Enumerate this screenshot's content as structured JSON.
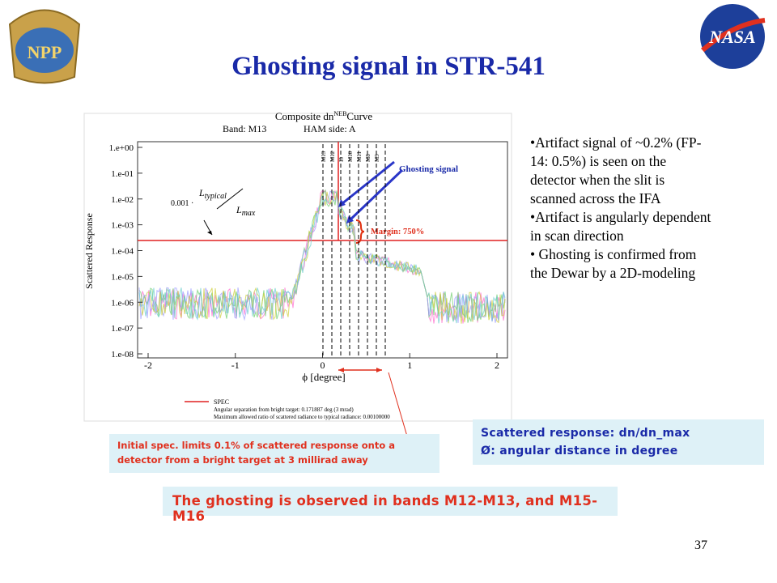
{
  "header": {
    "title": "Ghosting signal in STR-541",
    "logo_left": "NPP",
    "logo_right": "NASA"
  },
  "figure": {
    "title": "Composite dn",
    "title_sub": "NEB",
    "title_end": "Curve",
    "band": "Band: M13",
    "ham": "HAM side: A",
    "y_label": "Scattered Response",
    "yticks": [
      "1.e+00",
      "1.e-01",
      "1.e-02",
      "1.e-03",
      "1.e-04",
      "1.e-05",
      "1.e-06",
      "1.e-07",
      "1.e-08"
    ],
    "xticks": [
      "-2",
      "-1",
      "0",
      "1",
      "2"
    ],
    "x_label": "ϕ [degree]",
    "band_labels": [
      "M13",
      "M12",
      "I3",
      "M10",
      "M11",
      "M8",
      "M9"
    ],
    "legend": {
      "name": "SPEC",
      "line1": "Angular separation from bright target: 0.171887 deg   (3 mrad)",
      "line2": "Maximum allowed ratio of scattered radiance to typical radiance: 0.00100000"
    },
    "formula": {
      "coef": "0.001 ·",
      "num": "L",
      "num_sub": "typical",
      "den": "L",
      "den_sub": "max"
    },
    "ghost_label": "Ghosting signal",
    "margin_label": "Margin: 750%"
  },
  "bullets": [
    "•Artifact signal of ~0.2% (FP-14: 0.5%) is seen on the detector when the slit is scanned across the IFA",
    "•Artifact is angularly dependent in scan direction",
    "• Ghosting is confirmed from the Dewar by a 2D-modeling"
  ],
  "spec_note": "Initial spec. limits  0.1% of scattered response onto a detector from a bright target at 3 millirad  away",
  "legend_box": [
    "Scattered response: dn/dn_max",
    "Ø: angular distance in degree"
  ],
  "conclusion": "The ghosting is observed in bands M12-M13, and M15-M16",
  "page_number": "37"
}
